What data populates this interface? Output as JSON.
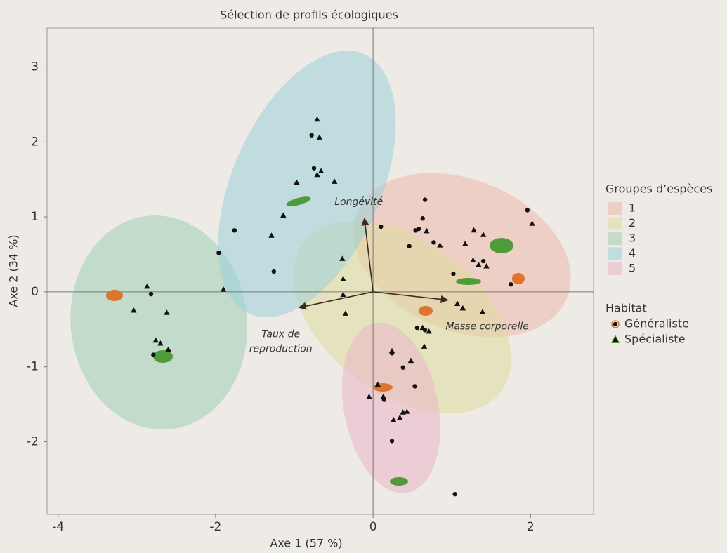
{
  "chart_data": {
    "type": "scatter",
    "title": "Sélection de profils écologiques",
    "x_label": "Axe 1 (57 %)",
    "y_label": "Axe 2 (34 %)",
    "xlim": [
      -4.14,
      2.8
    ],
    "ylim": [
      -2.97,
      3.52
    ],
    "xticks": [
      -4,
      -2,
      0,
      2
    ],
    "yticks": [
      -2,
      -1,
      0,
      1,
      2,
      3
    ],
    "groups": {
      "title": "Groupes d’espèces",
      "items": [
        {
          "name": "1",
          "color": "#eeb8ac",
          "cx": 1.13,
          "cy": 0.49,
          "a": 1.45,
          "b": 1.0,
          "angle": -25
        },
        {
          "name": "2",
          "color": "#dfdd9c",
          "cx": 0.37,
          "cy": -0.34,
          "a": 1.6,
          "b": 1.0,
          "angle": -40
        },
        {
          "name": "3",
          "color": "#9fcdb6",
          "cx": -2.72,
          "cy": -0.41,
          "a": 1.43,
          "b": 1.12,
          "angle": 95
        },
        {
          "name": "4",
          "color": "#9ccfdb",
          "cx": -0.84,
          "cy": 1.44,
          "a": 1.88,
          "b": 0.95,
          "angle": 68
        },
        {
          "name": "5",
          "color": "#ebb4c8",
          "cx": 0.23,
          "cy": -1.55,
          "a": 1.15,
          "b": 0.6,
          "angle": -80
        }
      ]
    },
    "loadings": [
      {
        "label": [
          "Longévité"
        ],
        "x": -0.11,
        "y": 0.98
      },
      {
        "label": [
          "Masse corporelle"
        ],
        "x": 0.95,
        "y": -0.11
      },
      {
        "label": [
          "Taux de",
          "reproduction"
        ],
        "x": -0.94,
        "y": -0.21
      }
    ],
    "legend_title": "Habitat",
    "series": [
      {
        "name": "Généraliste",
        "marker": "circle",
        "color": "#111111",
        "x": [
          -0.78,
          -0.75,
          -1.76,
          -1.96,
          -1.26,
          -2.82,
          -2.79,
          0.66,
          0.1,
          0.63,
          0.54,
          0.58,
          0.46,
          0.77,
          1.4,
          1.02,
          1.96,
          1.75,
          0.56,
          0.66,
          0.24,
          0.38,
          0.53,
          0.14,
          0.24,
          1.04
        ],
        "values": [
          2.09,
          1.65,
          0.82,
          0.52,
          0.27,
          -0.03,
          -0.84,
          1.23,
          0.87,
          0.98,
          0.82,
          0.84,
          0.61,
          0.66,
          0.41,
          0.24,
          1.09,
          0.1,
          -0.48,
          -0.51,
          -0.82,
          -1.01,
          -1.26,
          -1.44,
          -1.99,
          -2.7
        ]
      },
      {
        "name": "Spécialiste",
        "marker": "triangle",
        "color": "#111111",
        "x": [
          -0.71,
          -0.68,
          -0.66,
          -0.71,
          -0.97,
          -0.49,
          -1.14,
          -1.29,
          -1.9,
          -2.87,
          -3.04,
          -2.62,
          -2.76,
          -2.7,
          -2.6,
          0.68,
          0.85,
          1.28,
          1.4,
          1.17,
          1.27,
          1.34,
          1.44,
          2.02,
          -0.39,
          -0.38,
          -0.38,
          -0.35,
          1.07,
          1.14,
          1.39,
          0.63,
          0.71,
          0.65,
          0.24,
          0.48,
          0.06,
          -0.05,
          0.13,
          0.38,
          0.43,
          0.34,
          0.26
        ],
        "values": [
          2.3,
          2.06,
          1.61,
          1.56,
          1.46,
          1.47,
          1.02,
          0.75,
          0.03,
          0.07,
          -0.25,
          -0.28,
          -0.65,
          -0.69,
          -0.77,
          0.81,
          0.62,
          0.82,
          0.76,
          0.64,
          0.42,
          0.36,
          0.34,
          0.91,
          0.44,
          0.17,
          -0.04,
          -0.29,
          -0.16,
          -0.22,
          -0.27,
          -0.48,
          -0.53,
          -0.73,
          -0.79,
          -0.92,
          -1.24,
          -1.4,
          -1.4,
          -1.61,
          -1.6,
          -1.68,
          -1.71
        ]
      }
    ]
  }
}
